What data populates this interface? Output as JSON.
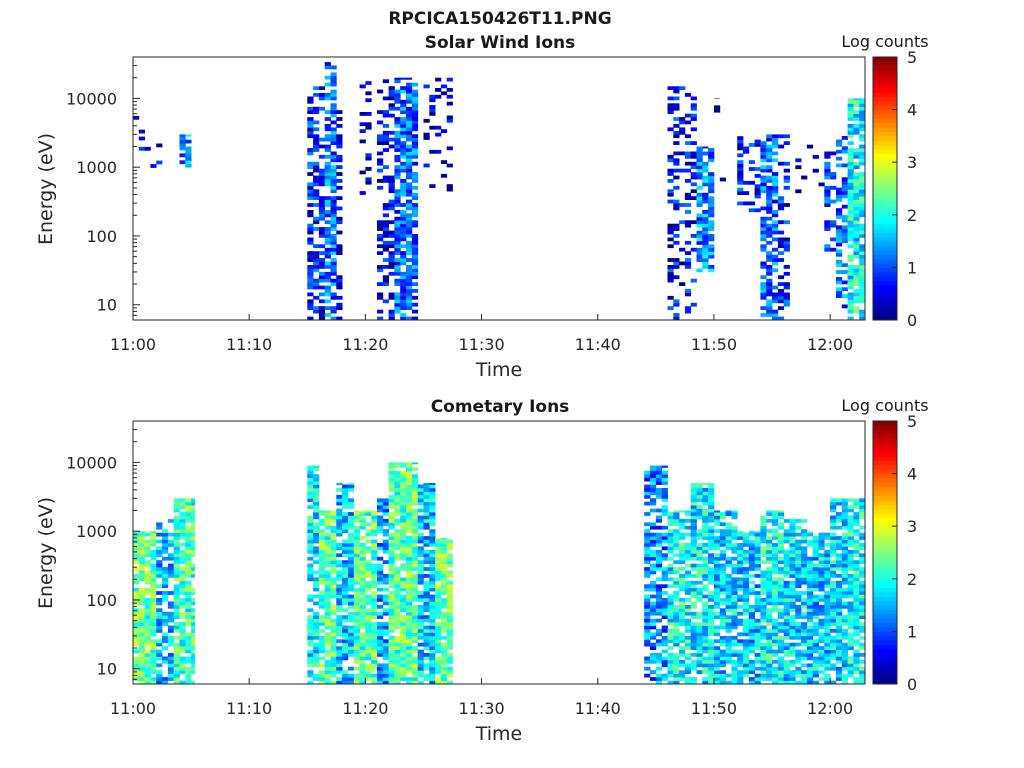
{
  "figure_title": "RPCICA150426T11.PNG",
  "chart_data": [
    {
      "type": "heatmap",
      "title": "Solar Wind Ions",
      "xlabel": "Time",
      "ylabel": "Energy (eV)",
      "y_scale": "log",
      "xlim": [
        "11:00",
        "12:03"
      ],
      "ylim": [
        6,
        40000
      ],
      "x_ticks": [
        "11:00",
        "11:10",
        "11:20",
        "11:30",
        "11:40",
        "11:50",
        "12:00"
      ],
      "y_ticks": [
        "10",
        "100",
        "1000",
        "10000"
      ],
      "colorbar": {
        "label": "Log counts",
        "range": [
          0,
          5
        ],
        "ticks": [
          "0",
          "1",
          "2",
          "3",
          "4",
          "5"
        ],
        "colormap": "jet"
      },
      "grid": false,
      "columns": [
        {
          "start": "11:00",
          "end": "11:01",
          "e_min": 700,
          "e_max": 6000,
          "level": 0.4,
          "density": 0.08
        },
        {
          "start": "11:01",
          "end": "11:03",
          "e_min": 700,
          "e_max": 3000,
          "level": 0.5,
          "density": 0.1
        },
        {
          "start": "11:04",
          "end": "11:05",
          "e_min": 1000,
          "e_max": 3000,
          "level": 1.3,
          "density": 0.6
        },
        {
          "start": "11:15",
          "end": "11:16.5",
          "e_min": 6,
          "e_max": 15000,
          "level": 0.8,
          "density": 0.55
        },
        {
          "start": "11:16.5",
          "end": "11:17.5",
          "e_min": 6,
          "e_max": 35000,
          "level": 1.2,
          "density": 0.7
        },
        {
          "start": "11:17.5",
          "end": "11:18",
          "e_min": 6,
          "e_max": 8000,
          "level": 0.6,
          "density": 0.45
        },
        {
          "start": "11:19.5",
          "end": "11:20.5",
          "e_min": 400,
          "e_max": 20000,
          "level": 0.3,
          "density": 0.25
        },
        {
          "start": "11:21",
          "end": "11:22.5",
          "e_min": 6,
          "e_max": 20000,
          "level": 0.5,
          "density": 0.45
        },
        {
          "start": "11:22.5",
          "end": "11:24.5",
          "e_min": 6,
          "e_max": 20000,
          "level": 1.1,
          "density": 0.75
        },
        {
          "start": "11:25",
          "end": "11:27.5",
          "e_min": 400,
          "e_max": 20000,
          "level": 0.3,
          "density": 0.2
        },
        {
          "start": "11:46",
          "end": "11:48.5",
          "e_min": 6,
          "e_max": 15000,
          "level": 0.6,
          "density": 0.35
        },
        {
          "start": "11:48.5",
          "end": "11:50",
          "e_min": 30,
          "e_max": 2000,
          "level": 1.3,
          "density": 0.7
        },
        {
          "start": "11:50",
          "end": "11:51",
          "e_min": 500,
          "e_max": 10000,
          "level": 0.2,
          "density": 0.1
        },
        {
          "start": "11:52",
          "end": "11:54",
          "e_min": 200,
          "e_max": 3000,
          "level": 0.7,
          "density": 0.4
        },
        {
          "start": "11:54",
          "end": "11:55.5",
          "e_min": 6,
          "e_max": 3000,
          "level": 1.1,
          "density": 0.6
        },
        {
          "start": "11:55.5",
          "end": "11:56.5",
          "e_min": 6,
          "e_max": 3000,
          "level": 0.7,
          "density": 0.45
        },
        {
          "start": "11:57",
          "end": "11:59.5",
          "e_min": 300,
          "e_max": 3000,
          "level": 0.2,
          "density": 0.15
        },
        {
          "start": "11:59.5",
          "end": "12:00.5",
          "e_min": 60,
          "e_max": 2000,
          "level": 0.8,
          "density": 0.5
        },
        {
          "start": "12:00.5",
          "end": "12:01.5",
          "e_min": 8,
          "e_max": 3000,
          "level": 1.1,
          "density": 0.55
        },
        {
          "start": "12:01.5",
          "end": "12:03",
          "e_min": 6,
          "e_max": 10000,
          "level": 1.9,
          "density": 0.8
        }
      ]
    },
    {
      "type": "heatmap",
      "title": "Cometary Ions",
      "xlabel": "Time",
      "ylabel": "Energy (eV)",
      "y_scale": "log",
      "xlim": [
        "11:00",
        "12:03"
      ],
      "ylim": [
        6,
        40000
      ],
      "x_ticks": [
        "11:00",
        "11:10",
        "11:20",
        "11:30",
        "11:40",
        "11:50",
        "12:00"
      ],
      "y_ticks": [
        "10",
        "100",
        "1000",
        "10000"
      ],
      "colorbar": {
        "label": "Log counts",
        "range": [
          0,
          5
        ],
        "ticks": [
          "0",
          "1",
          "2",
          "3",
          "4",
          "5"
        ],
        "colormap": "jet"
      },
      "grid": false,
      "columns": [
        {
          "start": "11:00",
          "end": "11:02",
          "e_min": 6,
          "e_max": 1000,
          "level": 2.4,
          "density": 0.85
        },
        {
          "start": "11:02",
          "end": "11:03.5",
          "e_min": 6,
          "e_max": 1500,
          "level": 1.5,
          "density": 0.7
        },
        {
          "start": "11:03.5",
          "end": "11:05.3",
          "e_min": 6,
          "e_max": 3000,
          "level": 2.2,
          "density": 0.85
        },
        {
          "start": "11:15",
          "end": "11:16",
          "e_min": 6,
          "e_max": 9000,
          "level": 1.8,
          "density": 0.8
        },
        {
          "start": "11:16",
          "end": "11:17.5",
          "e_min": 6,
          "e_max": 2000,
          "level": 2.3,
          "density": 0.9
        },
        {
          "start": "11:17.5",
          "end": "11:19",
          "e_min": 6,
          "e_max": 5000,
          "level": 1.6,
          "density": 0.8
        },
        {
          "start": "11:19",
          "end": "11:21",
          "e_min": 6,
          "e_max": 2000,
          "level": 2.3,
          "density": 0.9
        },
        {
          "start": "11:21",
          "end": "11:22",
          "e_min": 6,
          "e_max": 3000,
          "level": 1.4,
          "density": 0.7
        },
        {
          "start": "11:22",
          "end": "11:24.5",
          "e_min": 6,
          "e_max": 10000,
          "level": 2.3,
          "density": 0.9
        },
        {
          "start": "11:24.5",
          "end": "11:26",
          "e_min": 6,
          "e_max": 5000,
          "level": 1.6,
          "density": 0.8
        },
        {
          "start": "11:26",
          "end": "11:27.5",
          "e_min": 6,
          "e_max": 800,
          "level": 2.4,
          "density": 0.9
        },
        {
          "start": "11:44",
          "end": "11:46",
          "e_min": 6,
          "e_max": 9000,
          "level": 1.3,
          "density": 0.7
        },
        {
          "start": "11:46",
          "end": "11:48",
          "e_min": 6,
          "e_max": 2000,
          "level": 1.9,
          "density": 0.8
        },
        {
          "start": "11:48",
          "end": "11:50",
          "e_min": 6,
          "e_max": 5000,
          "level": 1.8,
          "density": 0.85
        },
        {
          "start": "11:50",
          "end": "11:52",
          "e_min": 6,
          "e_max": 2000,
          "level": 1.7,
          "density": 0.8
        },
        {
          "start": "11:52",
          "end": "11:54",
          "e_min": 6,
          "e_max": 1000,
          "level": 1.6,
          "density": 0.8
        },
        {
          "start": "11:54",
          "end": "11:56",
          "e_min": 6,
          "e_max": 2000,
          "level": 1.9,
          "density": 0.85
        },
        {
          "start": "11:56",
          "end": "11:58",
          "e_min": 6,
          "e_max": 1500,
          "level": 1.7,
          "density": 0.8
        },
        {
          "start": "11:58",
          "end": "12:00",
          "e_min": 6,
          "e_max": 1000,
          "level": 1.6,
          "density": 0.8
        },
        {
          "start": "12:00",
          "end": "12:01.5",
          "e_min": 6,
          "e_max": 3000,
          "level": 1.7,
          "density": 0.8
        },
        {
          "start": "12:01.5",
          "end": "12:03",
          "e_min": 6,
          "e_max": 3000,
          "level": 1.9,
          "density": 0.85
        }
      ]
    }
  ]
}
